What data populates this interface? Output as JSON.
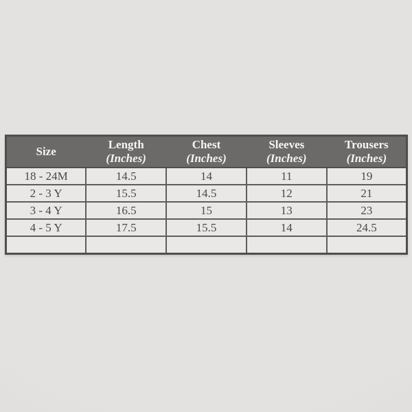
{
  "colors": {
    "page-bg": "#e4e2e0",
    "page-bg-edge": "#dcdad8",
    "header-bg": "#6b6a69",
    "header-text": "#f6f5f3",
    "cell-bg": "#eae8e6",
    "cell-text": "#4a4846",
    "grid-border": "#5e5d5c",
    "outer-border": "#4f4e4d"
  },
  "table": {
    "columns": [
      {
        "label": "Size",
        "unit": ""
      },
      {
        "label": "Length",
        "unit": "(Inches)"
      },
      {
        "label": "Chest",
        "unit": "(Inches)"
      },
      {
        "label": "Sleeves",
        "unit": "(Inches)"
      },
      {
        "label": "Trousers",
        "unit": "(Inches)"
      }
    ],
    "rows": [
      [
        "18 - 24M",
        "14.5",
        "14",
        "11",
        "19"
      ],
      [
        "2 - 3 Y",
        "15.5",
        "14.5",
        "12",
        "21"
      ],
      [
        "3 - 4 Y",
        "16.5",
        "15",
        "13",
        "23"
      ],
      [
        "4 - 5 Y",
        "17.5",
        "15.5",
        "14",
        "24.5"
      ],
      [
        "",
        "",
        "",
        "",
        ""
      ]
    ]
  },
  "chart_data": {
    "type": "table",
    "title": "",
    "columns": [
      "Size",
      "Length (Inches)",
      "Chest (Inches)",
      "Sleeves (Inches)",
      "Trousers (Inches)"
    ],
    "rows": [
      {
        "size": "18 - 24M",
        "length_in": 14.5,
        "chest_in": 14,
        "sleeves_in": 11,
        "trousers_in": 19
      },
      {
        "size": "2 - 3 Y",
        "length_in": 15.5,
        "chest_in": 14.5,
        "sleeves_in": 12,
        "trousers_in": 21
      },
      {
        "size": "3 - 4 Y",
        "length_in": 16.5,
        "chest_in": 15,
        "sleeves_in": 13,
        "trousers_in": 23
      },
      {
        "size": "4 - 5 Y",
        "length_in": 17.5,
        "chest_in": 15.5,
        "sleeves_in": 14,
        "trousers_in": 24.5
      },
      {
        "size": "",
        "length_in": null,
        "chest_in": null,
        "sleeves_in": null,
        "trousers_in": null
      }
    ]
  }
}
